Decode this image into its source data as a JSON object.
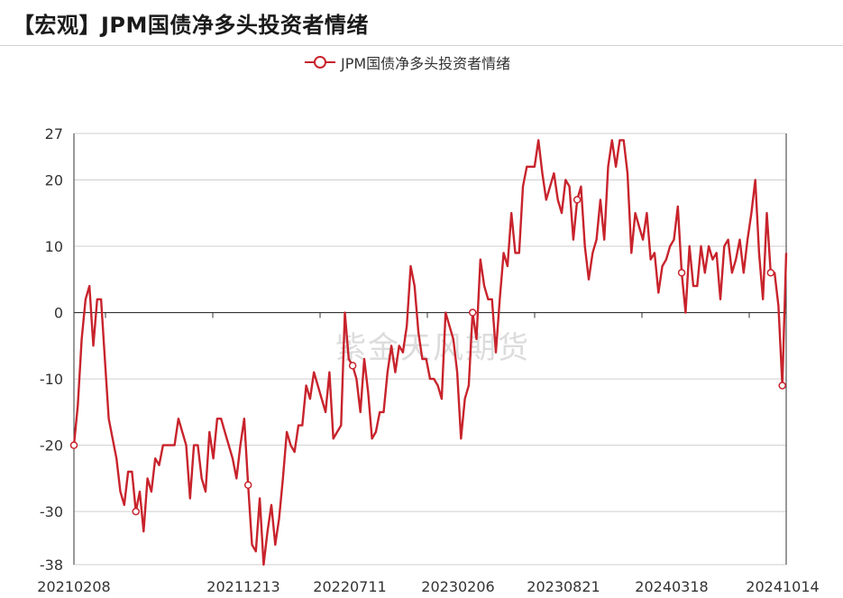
{
  "header": {
    "title": "【宏观】JPM国债净多头投资者情绪"
  },
  "watermark": "紫金天风期货",
  "colors": {
    "series": "#c8232c",
    "grid": "#cfcfcf",
    "axis": "#333333"
  },
  "chart_data": {
    "type": "line",
    "title": "【宏观】JPM国债净多头投资者情绪",
    "legend_position": "top-center",
    "grid": true,
    "ylim": [
      -38,
      27
    ],
    "yticks": [
      27,
      20,
      10,
      0,
      -10,
      -20,
      -30,
      -38
    ],
    "xtick_labels": [
      "20210208",
      "20211213",
      "20220711",
      "20230206",
      "20230821",
      "20240318",
      "20241014"
    ],
    "series": [
      {
        "name": "JPM国债净多头投资者情绪",
        "values": [
          -20,
          -14,
          -4,
          2,
          4,
          -5,
          2,
          2,
          -7,
          -16,
          -19,
          -22,
          -27,
          -29,
          -24,
          -24,
          -30,
          -27,
          -33,
          -25,
          -27,
          -22,
          -23,
          -20,
          -20,
          -20,
          -20,
          -16,
          -18,
          -20,
          -28,
          -20,
          -20,
          -25,
          -27,
          -18,
          -22,
          -16,
          -16,
          -18,
          -20,
          -22,
          -25,
          -20,
          -16,
          -26,
          -35,
          -36,
          -28,
          -38,
          -33,
          -29,
          -35,
          -31,
          -25,
          -18,
          -20,
          -21,
          -17,
          -17,
          -11,
          -13,
          -9,
          -11,
          -13,
          -15,
          -9,
          -19,
          -18,
          -17,
          0,
          -7,
          -8,
          -10,
          -15,
          -7,
          -12,
          -19,
          -18,
          -15,
          -15,
          -9,
          -5,
          -9,
          -5,
          -6,
          -2,
          7,
          4,
          -3,
          -7,
          -7,
          -10,
          -10,
          -11,
          -13,
          0,
          -2,
          -4,
          -9,
          -19,
          -13,
          -11,
          0,
          -4,
          8,
          4,
          2,
          2,
          -6,
          2,
          9,
          7,
          15,
          9,
          9,
          19,
          22,
          22,
          22,
          26,
          21,
          17,
          19,
          21,
          17,
          15,
          20,
          19,
          11,
          17,
          19,
          10,
          5,
          9,
          11,
          17,
          11,
          22,
          26,
          22,
          26,
          26,
          21,
          9,
          15,
          13,
          11,
          15,
          8,
          9,
          3,
          7,
          8,
          10,
          11,
          16,
          6,
          0,
          10,
          4,
          4,
          10,
          6,
          10,
          8,
          9,
          2,
          10,
          11,
          6,
          8,
          11,
          6,
          11,
          15,
          20,
          9,
          2,
          15,
          6,
          6,
          1,
          -11,
          9
        ],
        "markers": [
          0,
          16,
          45,
          72,
          103,
          130,
          157,
          180,
          183
        ]
      }
    ]
  }
}
